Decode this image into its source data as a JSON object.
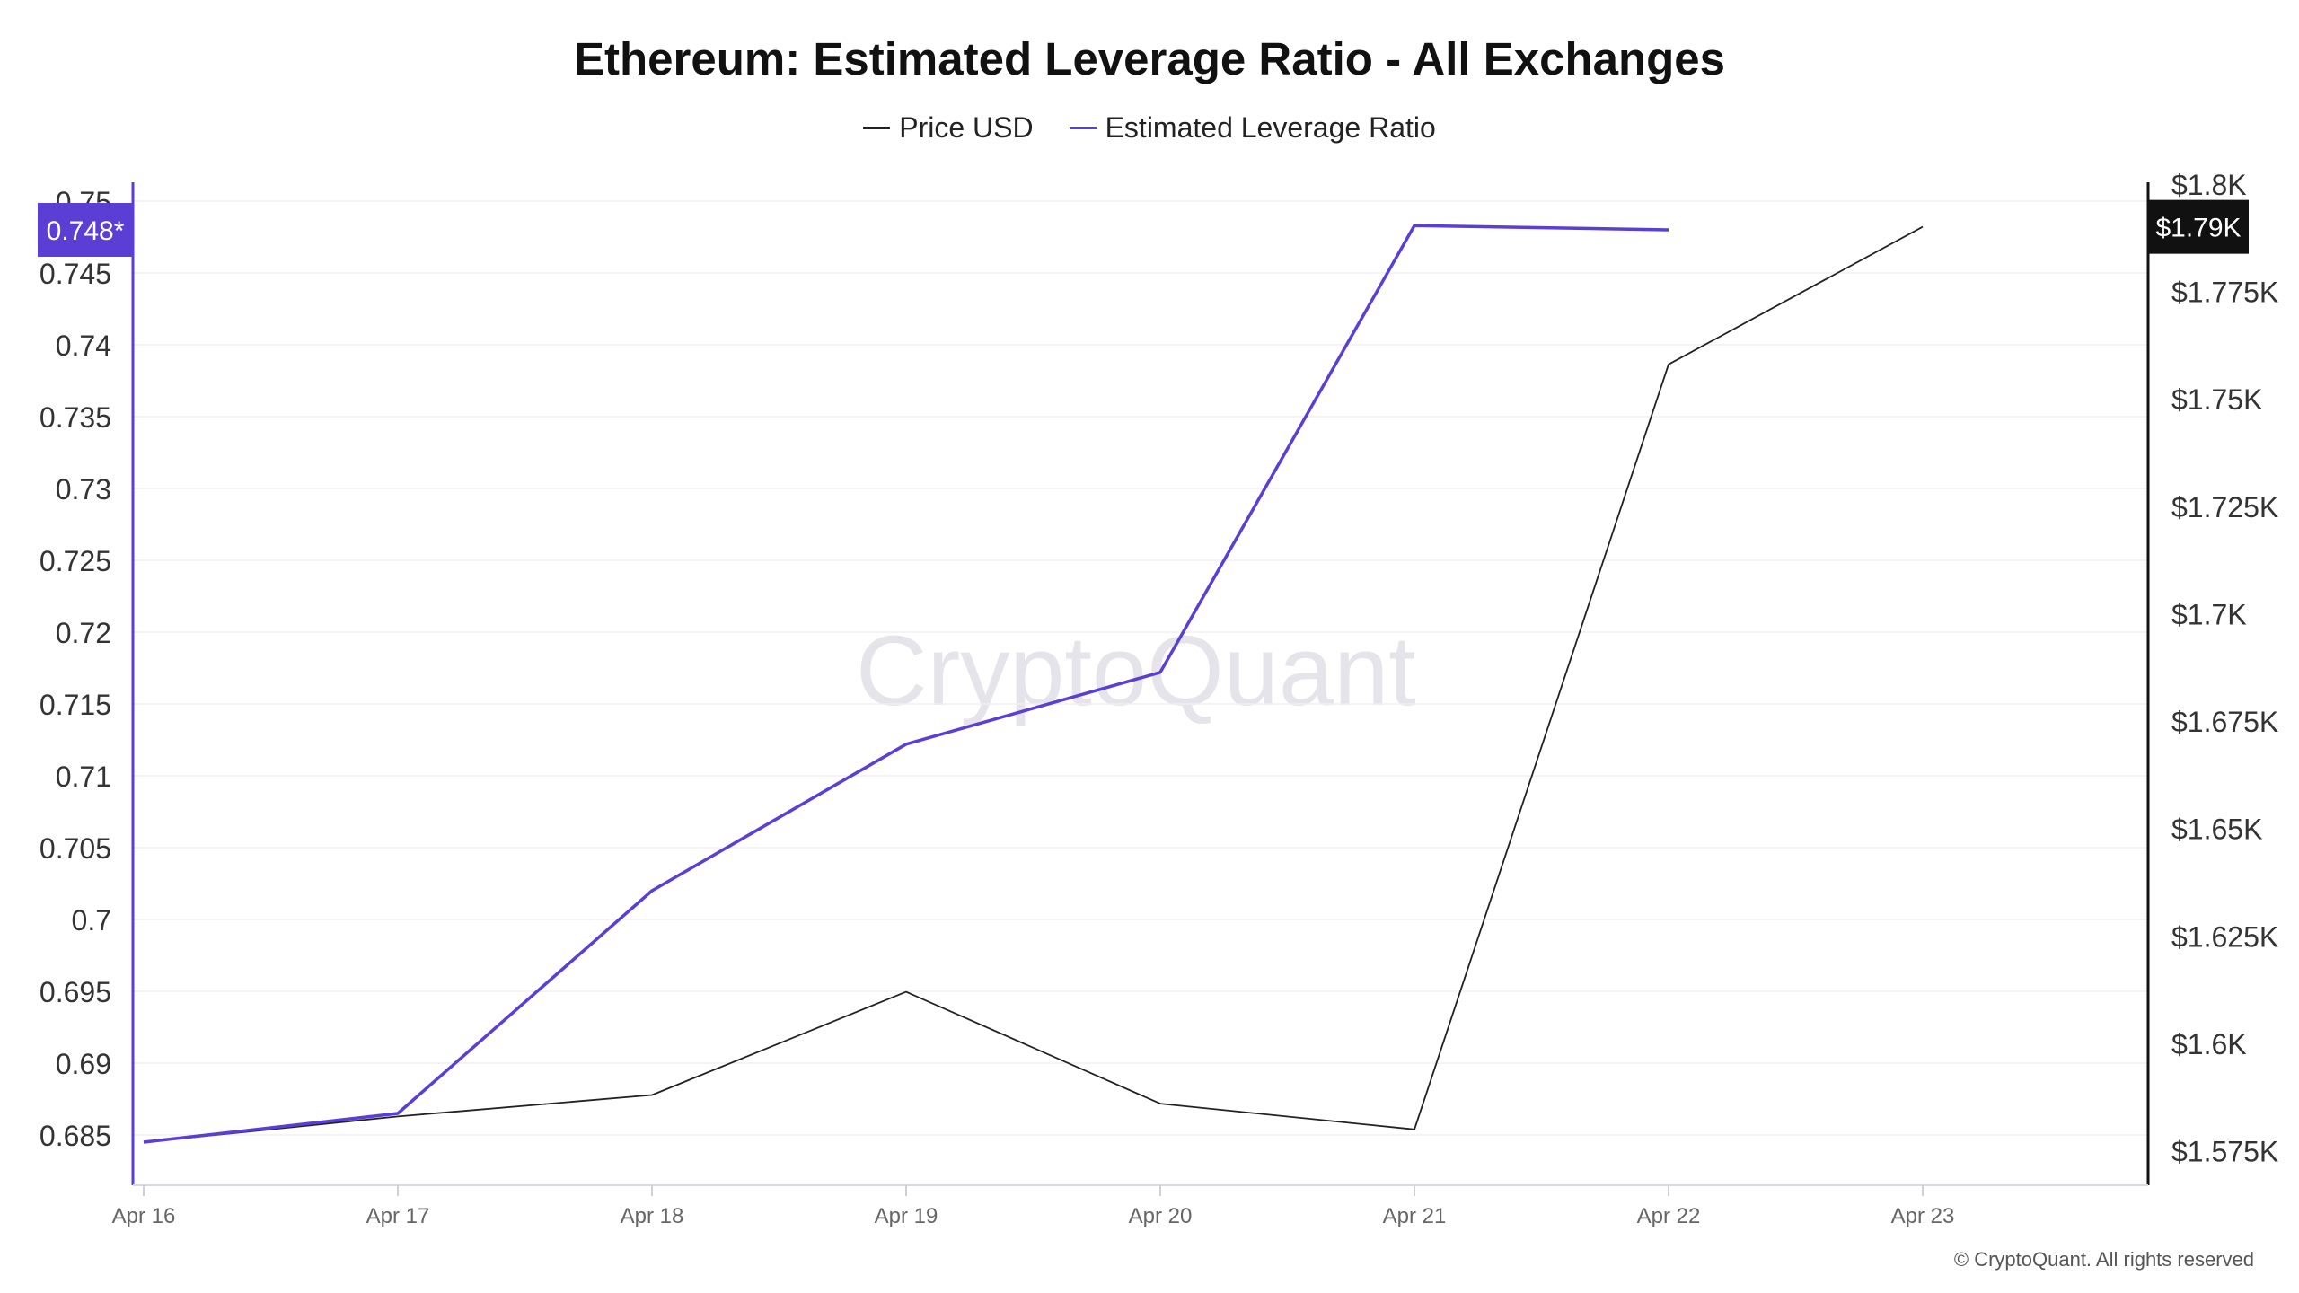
{
  "chart_data": {
    "type": "line",
    "title": "Ethereum: Estimated Leverage Ratio - All Exchanges",
    "x": [
      "Apr 16",
      "Apr 17",
      "Apr 18",
      "Apr 19",
      "Apr 20",
      "Apr 21",
      "Apr 22",
      "Apr 23"
    ],
    "legend": [
      {
        "name": "Price USD",
        "color": "#222222"
      },
      {
        "name": "Estimated Leverage Ratio",
        "color": "#5b3fd4"
      }
    ],
    "series": [
      {
        "name": "Price USD",
        "axis": "right",
        "color": "#222222",
        "values": [
          1577,
          1583,
          1588,
          1612,
          1586,
          1580,
          1758,
          1790
        ]
      },
      {
        "name": "Estimated Leverage Ratio",
        "axis": "left",
        "color": "#5b3fd4",
        "values": [
          0.6845,
          0.6865,
          0.702,
          0.7122,
          0.7172,
          0.7483,
          0.748,
          null
        ]
      }
    ],
    "left_axis": {
      "ylim": [
        0.6815,
        0.7515
      ],
      "ticks": [
        0.685,
        0.69,
        0.695,
        0.7,
        0.705,
        0.71,
        0.715,
        0.72,
        0.725,
        0.73,
        0.735,
        0.74,
        0.745,
        0.75
      ],
      "tick_labels": [
        "0.685",
        "0.69",
        "0.695",
        "0.7",
        "0.705",
        "0.71",
        "0.715",
        "0.72",
        "0.725",
        "0.73",
        "0.735",
        "0.74",
        "0.745",
        "0.75"
      ],
      "current_value_label": "0.748*",
      "current_value": 0.748,
      "color": "#5b3fd4"
    },
    "right_axis": {
      "ylim": [
        1567,
        1801
      ],
      "ticks": [
        1575,
        1600,
        1625,
        1650,
        1675,
        1700,
        1725,
        1750,
        1775,
        1800
      ],
      "tick_labels": [
        "$1.575K",
        "$1.6K",
        "$1.625K",
        "$1.65K",
        "$1.675K",
        "$1.7K",
        "$1.725K",
        "$1.75K",
        "$1.775K",
        "$1.8K"
      ],
      "current_value_label": "$1.79K",
      "current_value": 1790,
      "color": "#111111"
    },
    "grid": true,
    "legend_position": "top-center",
    "watermark": "CryptoQuant"
  },
  "copyright": "© CryptoQuant. All rights reserved"
}
